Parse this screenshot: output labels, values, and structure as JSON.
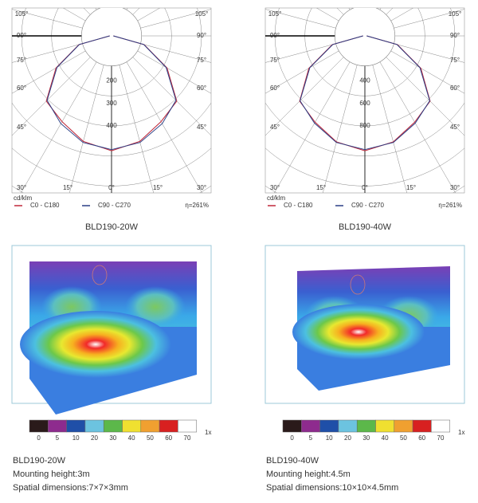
{
  "panels": [
    {
      "polar": {
        "angle_labels": [
          "105°",
          "90°",
          "75°",
          "60°",
          "45°",
          "30°",
          "15°",
          "0°"
        ],
        "ring_values": [
          200,
          300,
          400
        ],
        "unit": "cd/klm",
        "angles": [
          0,
          15,
          30,
          45,
          60,
          75,
          90
        ],
        "series": [
          {
            "name": "C0 - C180",
            "color": "#c0283a",
            "values": [
              510,
              485,
              440,
              410,
              285,
              150,
              8
            ]
          },
          {
            "name": "C90 - C270",
            "color": "#2a3f86",
            "values": [
              505,
              490,
              450,
              405,
              280,
              148,
              8
            ]
          }
        ],
        "efficiency": "η=261%"
      },
      "title": "BLD190-20W",
      "scale_labels": [
        "0",
        "5",
        "10",
        "20",
        "30",
        "40",
        "50",
        "60",
        "70"
      ],
      "scale_unit": "1x",
      "caption": [
        "BLD190-20W",
        "Mounting height:3m",
        "Spatial dimensions:7×7×3mm"
      ]
    },
    {
      "polar": {
        "angle_labels": [
          "105°",
          "90°",
          "75°",
          "60°",
          "45°",
          "30°",
          "15°",
          "0°"
        ],
        "ring_values": [
          400,
          600,
          800
        ],
        "unit": "cd/klm",
        "angles": [
          0,
          15,
          30,
          45,
          60,
          75,
          90
        ],
        "series": [
          {
            "name": "C0 - C180",
            "color": "#c0283a",
            "values": [
              1020,
              975,
              885,
              820,
              575,
              300,
              16
            ]
          },
          {
            "name": "C90 - C270",
            "color": "#2a3f86",
            "values": [
              1010,
              980,
              895,
              815,
              565,
              295,
              16
            ]
          }
        ],
        "efficiency": "η=261%"
      },
      "title": "BLD190-40W",
      "scale_labels": [
        "0",
        "5",
        "10",
        "20",
        "30",
        "40",
        "50",
        "60",
        "70"
      ],
      "scale_unit": "1x",
      "caption": [
        "BLD190-40W",
        "Mounting height:4.5m",
        "Spatial dimensions:10×10×4.5mm"
      ]
    }
  ]
}
